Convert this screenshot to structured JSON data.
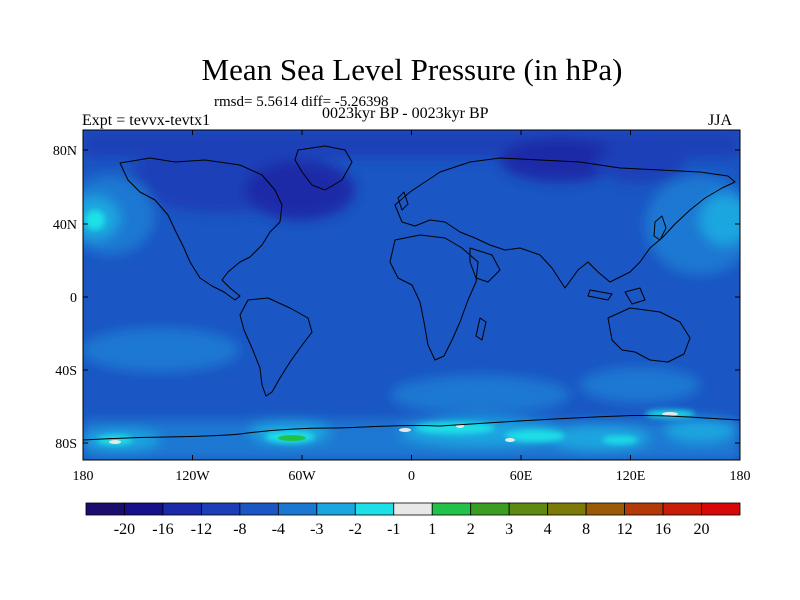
{
  "title": "Mean Sea Level Pressure (in hPa)",
  "stats": "rmsd= 5.5614 diff= -5.26398",
  "left_label": "Expt = tevvx-tevtx1",
  "center_label": "0023kyr BP - 0023kyr BP",
  "right_label": "JJA",
  "lat_ticks": [
    "80N",
    "40N",
    "0",
    "40S",
    "80S"
  ],
  "lon_ticks": [
    "180",
    "120W",
    "60W",
    "0",
    "60E",
    "120E",
    "180"
  ],
  "colorbar": {
    "labels": [
      "-20",
      "-16",
      "-12",
      "-8",
      "-4",
      "-3",
      "-2",
      "-1",
      "1",
      "2",
      "3",
      "4",
      "8",
      "12",
      "16",
      "20"
    ],
    "colors": [
      "#1a0d6e",
      "#16118a",
      "#1a2aa8",
      "#1c3fb8",
      "#1a56c4",
      "#1a78d2",
      "#1aa6e0",
      "#1ce0e6",
      "#e8e8e8",
      "#22c24a",
      "#3b9d22",
      "#5f8a12",
      "#7d7a0a",
      "#9a5a06",
      "#b33a06",
      "#c81e08",
      "#d80808"
    ]
  }
}
